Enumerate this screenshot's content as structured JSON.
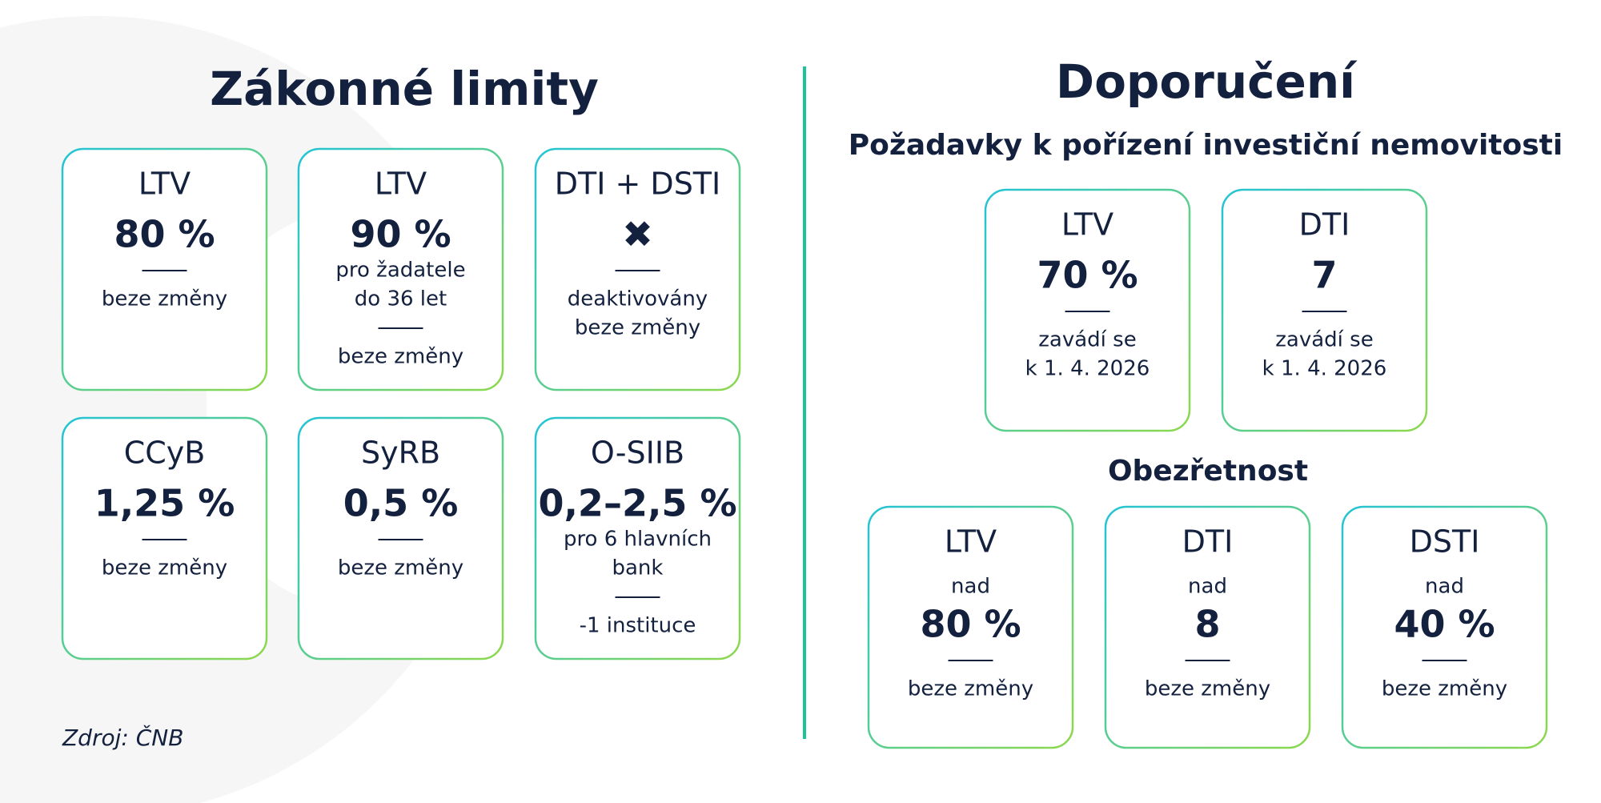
{
  "left": {
    "title": "Zákonné limity",
    "cards": [
      {
        "label": "LTV",
        "value": "80 %",
        "notes": [
          "beze změny"
        ]
      },
      {
        "label": "LTV",
        "value": "90 %",
        "details": [
          "pro žadatele",
          "do 36 let"
        ],
        "notes": [
          "beze změny"
        ]
      },
      {
        "label": "DTI + DSTI",
        "value": "✖",
        "notes": [
          "deaktivovány",
          "beze změny"
        ]
      },
      {
        "label": "CCyB",
        "value": "1,25 %",
        "notes": [
          "beze změny"
        ]
      },
      {
        "label": "SyRB",
        "value": "0,5 %",
        "notes": [
          "beze změny"
        ]
      },
      {
        "label": "O-SIIB",
        "value": "0,2–2,5 %",
        "details": [
          "pro 6 hlavních",
          "bank"
        ],
        "notes": [
          "-1 instituce"
        ]
      }
    ],
    "source": "Zdroj: ČNB"
  },
  "right": {
    "title": "Doporučení",
    "subtitle": "Požadavky k pořízení investiční nemovitosti",
    "cards": [
      {
        "label": "LTV",
        "value": "70 %",
        "notes": [
          "zavádí se",
          "k 1. 4. 2026"
        ]
      },
      {
        "label": "DTI",
        "value": "7",
        "notes": [
          "zavádí se",
          "k 1. 4. 2026"
        ]
      }
    ],
    "section": "Obezřetnost",
    "section_cards": [
      {
        "label": "LTV",
        "prefix": "nad",
        "value": "80 %",
        "notes": [
          "beze změny"
        ]
      },
      {
        "label": "DTI",
        "prefix": "nad",
        "value": "8",
        "notes": [
          "beze změny"
        ]
      },
      {
        "label": "DSTI",
        "prefix": "nad",
        "value": "40 %",
        "notes": [
          "beze změny"
        ]
      }
    ]
  }
}
